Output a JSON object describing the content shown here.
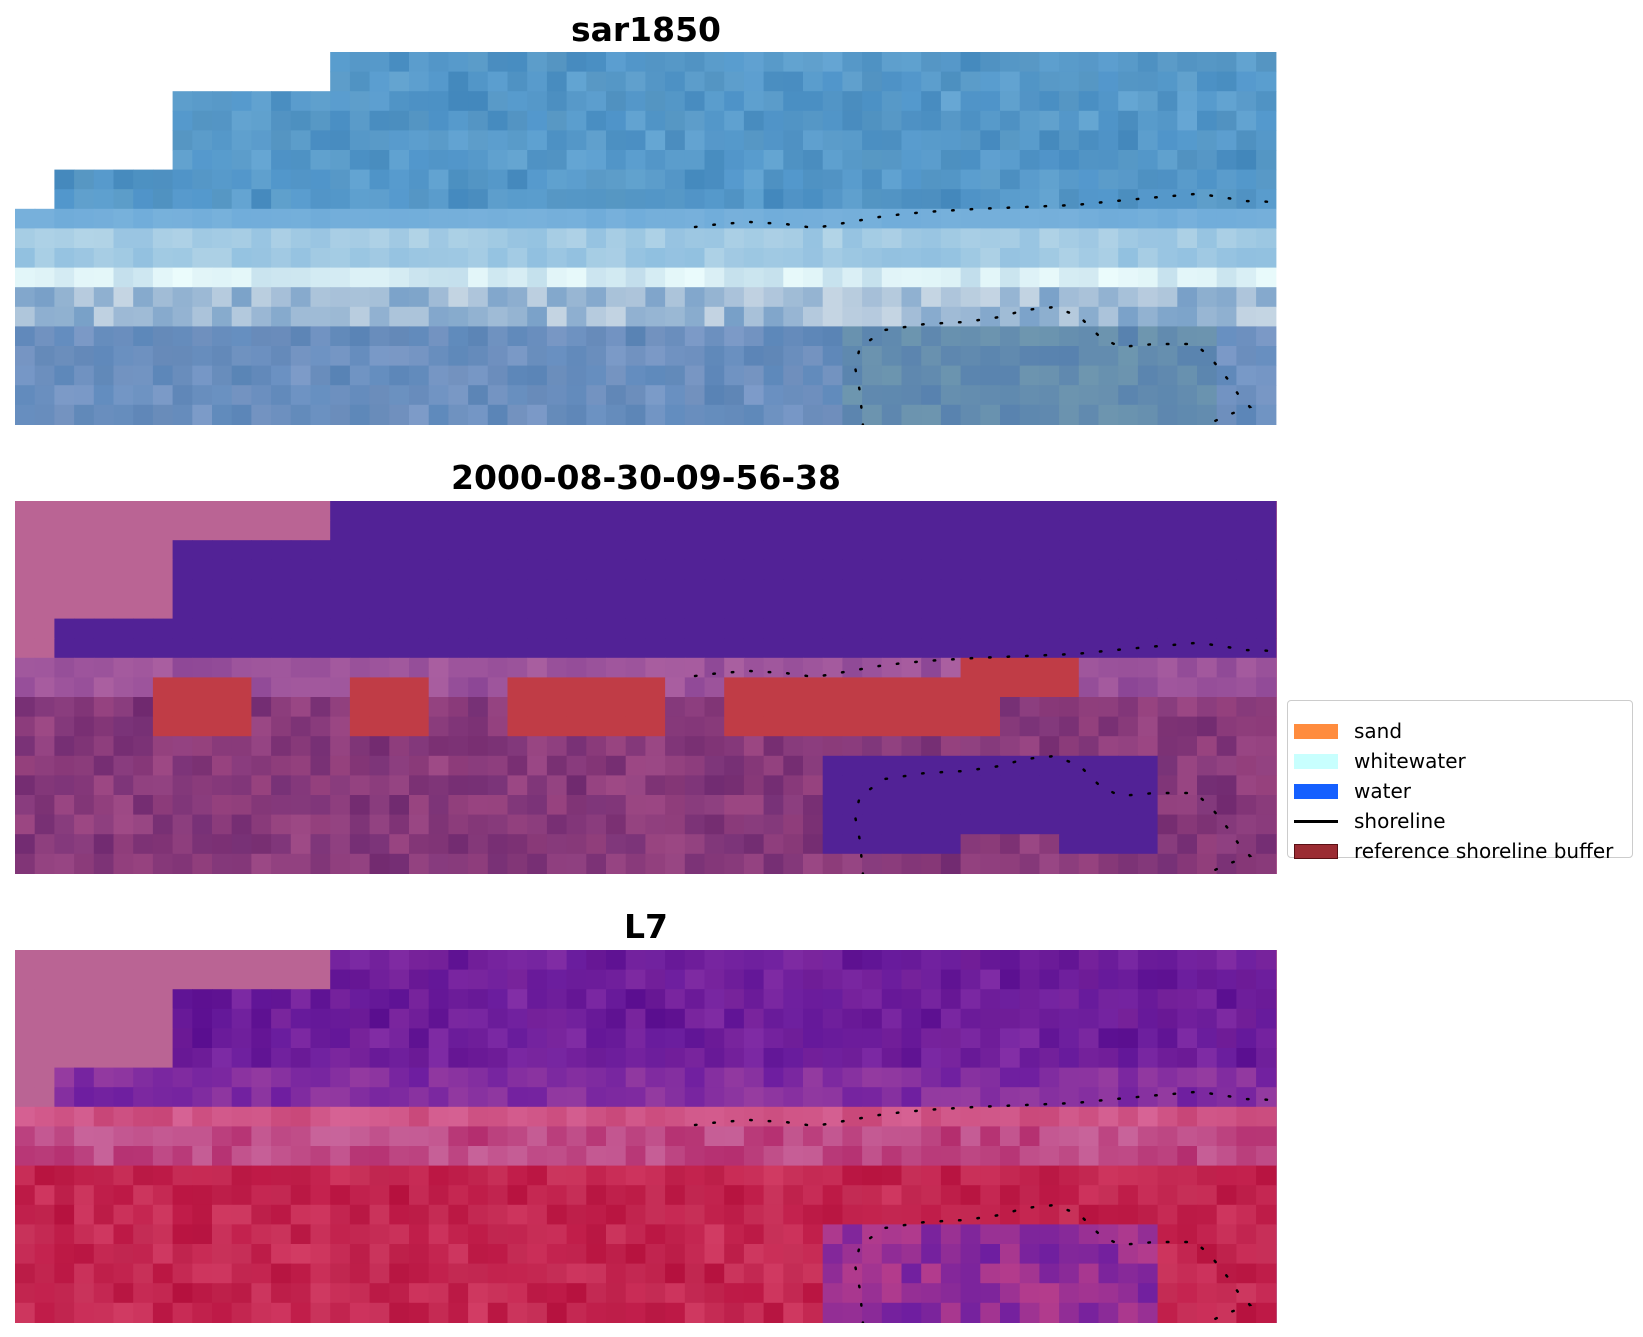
{
  "panels": [
    {
      "title": "sar1850",
      "style": "rgb"
    },
    {
      "title": "2000-08-30-09-56-38",
      "style": "classified"
    },
    {
      "title": "L7",
      "style": "index"
    }
  ],
  "legend": {
    "items": [
      {
        "label": "sand",
        "color": "#ff8c3e",
        "kind": "patch"
      },
      {
        "label": "whitewater",
        "color": "#c8fffe",
        "kind": "patch"
      },
      {
        "label": "water",
        "color": "#1560ff",
        "kind": "patch"
      },
      {
        "label": "shoreline",
        "color": "#000000",
        "kind": "line"
      },
      {
        "label": "reference shoreline buffer",
        "color": "#9b2c33",
        "kind": "patch-outline"
      }
    ]
  }
}
